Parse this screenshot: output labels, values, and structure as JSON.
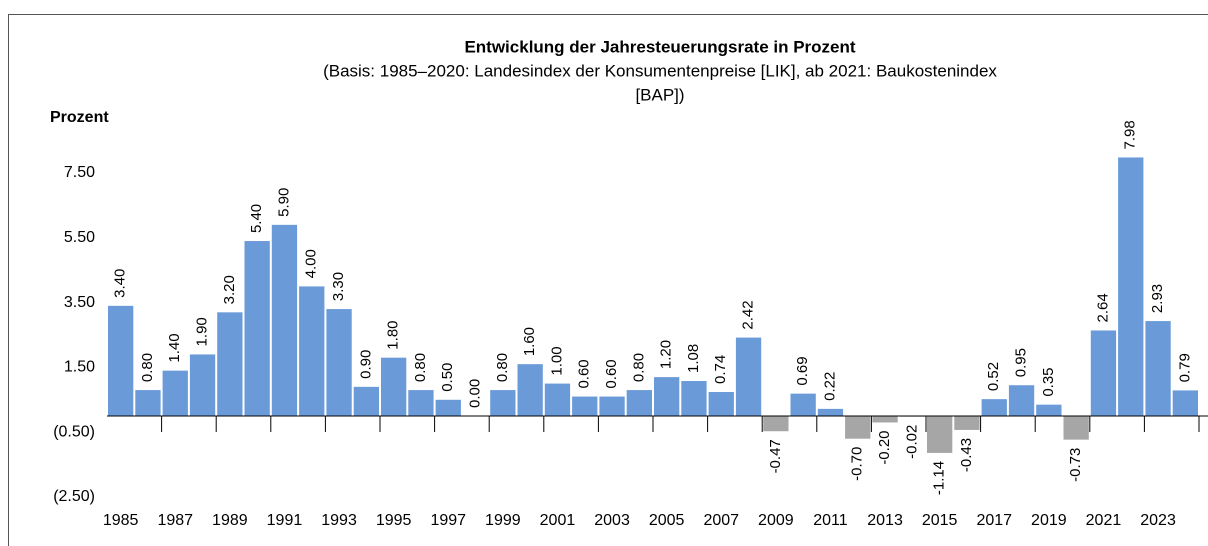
{
  "chart_data": {
    "type": "bar",
    "title": "Entwicklung der Jahresteuerungsrate in Prozent",
    "subtitle": [
      "(Basis: 1985–2020: Landesindex der Konsumentenpreise [LIK], ab 2021: Baukostenindex",
      "[BAP])"
    ],
    "y_label": "Prozent",
    "categories": [
      "1985",
      null,
      "1987",
      null,
      "1989",
      null,
      "1991",
      null,
      "1993",
      null,
      "1995",
      null,
      "1997",
      null,
      "1999",
      null,
      "2001",
      null,
      "2003",
      null,
      "2005",
      null,
      "2007",
      null,
      "2009",
      null,
      "2011",
      null,
      "2013",
      null,
      "2015",
      null,
      "2017",
      null,
      "2019",
      null,
      "2021",
      null,
      "2023",
      null
    ],
    "values": [
      3.4,
      0.8,
      1.4,
      1.9,
      3.2,
      5.4,
      5.9,
      4.0,
      3.3,
      0.9,
      1.8,
      0.8,
      0.5,
      0.0,
      0.8,
      1.6,
      1.0,
      0.6,
      0.6,
      0.8,
      1.2,
      1.08,
      0.74,
      2.42,
      -0.47,
      0.69,
      0.22,
      -0.7,
      -0.2,
      -0.02,
      -1.14,
      -0.43,
      0.52,
      0.95,
      0.35,
      -0.73,
      2.64,
      7.98,
      2.93,
      0.79
    ],
    "value_labels": [
      "3.40",
      "0.80",
      "1.40",
      "1.90",
      "3.20",
      "5.40",
      "5.90",
      "4.00",
      "3.30",
      "0.90",
      "1.80",
      "0.80",
      "0.50",
      "0.00",
      "0.80",
      "1.60",
      "1.00",
      "0.60",
      "0.60",
      "0.80",
      "1.20",
      "1.08",
      "0.74",
      "2.42",
      "-0.47",
      "0.69",
      "0.22",
      "-0.70",
      "-0.20",
      "-0.02",
      "-1.14",
      "-0.43",
      "0.52",
      "0.95",
      "0.35",
      "-0.73",
      "2.64",
      "7.98",
      "2.93",
      "0.79"
    ],
    "color": "#6a9bd8",
    "negative_color": "#a6a6a6",
    "ylim": [
      -2.5,
      8.5
    ],
    "yticks": [
      {
        "value": 7.5,
        "label": "7.50"
      },
      {
        "value": 5.5,
        "label": "5.50"
      },
      {
        "value": 3.5,
        "label": "3.50"
      },
      {
        "value": 1.5,
        "label": "1.50"
      },
      {
        "value": -0.5,
        "label": "(0.50)"
      },
      {
        "value": -2.5,
        "label": "(2.50)"
      }
    ],
    "grid": false
  }
}
